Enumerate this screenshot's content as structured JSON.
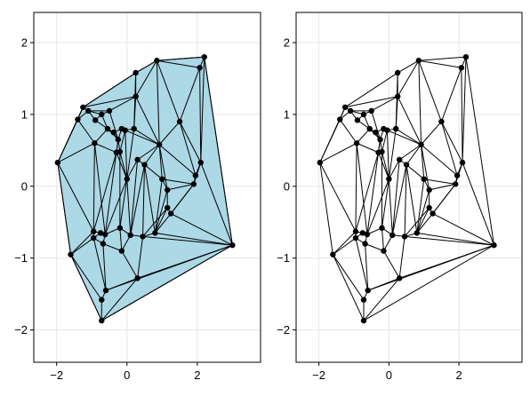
{
  "colors": {
    "fill": "#add8e6",
    "point": "#000000",
    "edge": "#000000"
  },
  "chart_data": [
    {
      "type": "triangulation",
      "filled": true,
      "xlim": [
        -2.65,
        3.8
      ],
      "ylim": [
        -2.45,
        2.42
      ],
      "xticks": [
        -2,
        0,
        2
      ],
      "yticks": [
        -2,
        -1,
        0,
        1,
        2
      ],
      "xtick_labels": [
        "−2",
        "0",
        "2"
      ],
      "ytick_labels": [
        "−2",
        "−1",
        "0",
        "1",
        "2"
      ],
      "grid": true,
      "points": [
        [
          -1.97,
          0.33
        ],
        [
          -1.25,
          1.1
        ],
        [
          -1.4,
          0.93
        ],
        [
          -1.1,
          1.05
        ],
        [
          -0.9,
          0.92
        ],
        [
          -0.72,
          1.0
        ],
        [
          -0.5,
          1.05
        ],
        [
          -0.92,
          0.6
        ],
        [
          -0.55,
          0.8
        ],
        [
          -0.38,
          0.75
        ],
        [
          -0.25,
          0.65
        ],
        [
          -0.15,
          0.8
        ],
        [
          -0.05,
          0.78
        ],
        [
          0.2,
          0.8
        ],
        [
          -0.3,
          0.47
        ],
        [
          -0.2,
          0.48
        ],
        [
          0.0,
          0.1
        ],
        [
          0.3,
          0.37
        ],
        [
          0.5,
          0.3
        ],
        [
          0.25,
          1.25
        ],
        [
          0.25,
          1.58
        ],
        [
          0.85,
          1.75
        ],
        [
          0.92,
          0.58
        ],
        [
          1.5,
          0.9
        ],
        [
          2.07,
          1.65
        ],
        [
          2.2,
          1.8
        ],
        [
          2.1,
          0.33
        ],
        [
          1.95,
          0.15
        ],
        [
          1.9,
          0.03
        ],
        [
          1.0,
          0.1
        ],
        [
          1.15,
          -0.05
        ],
        [
          1.15,
          -0.3
        ],
        [
          1.25,
          -0.38
        ],
        [
          -0.95,
          -0.63
        ],
        [
          -0.95,
          -0.72
        ],
        [
          -0.75,
          -0.65
        ],
        [
          -0.62,
          -0.67
        ],
        [
          -0.68,
          -0.8
        ],
        [
          -0.2,
          -0.58
        ],
        [
          0.1,
          -0.68
        ],
        [
          0.45,
          -0.7
        ],
        [
          0.8,
          -0.65
        ],
        [
          -0.15,
          -0.9
        ],
        [
          0.3,
          -1.28
        ],
        [
          -0.6,
          -1.45
        ],
        [
          -0.72,
          -1.58
        ],
        [
          -0.72,
          -1.87
        ],
        [
          -1.6,
          -0.95
        ],
        [
          3.0,
          -0.82
        ]
      ],
      "edges": [
        [
          0,
          1
        ],
        [
          0,
          2
        ],
        [
          1,
          2
        ],
        [
          1,
          3
        ],
        [
          2,
          3
        ],
        [
          1,
          20
        ],
        [
          1,
          19
        ],
        [
          3,
          4
        ],
        [
          3,
          5
        ],
        [
          3,
          6
        ],
        [
          4,
          5
        ],
        [
          5,
          6
        ],
        [
          4,
          8
        ],
        [
          5,
          8
        ],
        [
          2,
          7
        ],
        [
          0,
          7
        ],
        [
          7,
          8
        ],
        [
          7,
          14
        ],
        [
          8,
          9
        ],
        [
          9,
          10
        ],
        [
          10,
          11
        ],
        [
          11,
          12
        ],
        [
          12,
          13
        ],
        [
          9,
          11
        ],
        [
          6,
          10
        ],
        [
          6,
          19
        ],
        [
          8,
          10
        ],
        [
          10,
          14
        ],
        [
          14,
          15
        ],
        [
          15,
          10
        ],
        [
          15,
          12
        ],
        [
          12,
          16
        ],
        [
          13,
          16
        ],
        [
          13,
          22
        ],
        [
          19,
          13
        ],
        [
          19,
          20
        ],
        [
          20,
          21
        ],
        [
          19,
          21
        ],
        [
          19,
          22
        ],
        [
          21,
          22
        ],
        [
          21,
          23
        ],
        [
          21,
          24
        ],
        [
          21,
          25
        ],
        [
          24,
          25
        ],
        [
          23,
          24
        ],
        [
          23,
          22
        ],
        [
          23,
          26
        ],
        [
          24,
          26
        ],
        [
          25,
          26
        ],
        [
          25,
          48
        ],
        [
          26,
          48
        ],
        [
          26,
          27
        ],
        [
          27,
          28
        ],
        [
          28,
          32
        ],
        [
          26,
          28
        ],
        [
          23,
          27
        ],
        [
          22,
          27
        ],
        [
          22,
          29
        ],
        [
          22,
          18
        ],
        [
          17,
          18
        ],
        [
          17,
          16
        ],
        [
          17,
          22
        ],
        [
          18,
          29
        ],
        [
          29,
          30
        ],
        [
          30,
          31
        ],
        [
          31,
          32
        ],
        [
          32,
          28
        ],
        [
          30,
          28
        ],
        [
          29,
          28
        ],
        [
          32,
          48
        ],
        [
          31,
          41
        ],
        [
          32,
          41
        ],
        [
          41,
          48
        ],
        [
          40,
          41
        ],
        [
          40,
          48
        ],
        [
          43,
          48
        ],
        [
          44,
          48
        ],
        [
          45,
          44
        ],
        [
          46,
          48
        ],
        [
          46,
          45
        ],
        [
          46,
          47
        ],
        [
          46,
          43
        ],
        [
          0,
          47
        ],
        [
          0,
          33
        ],
        [
          47,
          33
        ],
        [
          47,
          34
        ],
        [
          47,
          45
        ],
        [
          33,
          34
        ],
        [
          33,
          35
        ],
        [
          34,
          35
        ],
        [
          35,
          36
        ],
        [
          36,
          37
        ],
        [
          37,
          34
        ],
        [
          33,
          7
        ],
        [
          7,
          36
        ],
        [
          14,
          33
        ],
        [
          14,
          16
        ],
        [
          16,
          38
        ],
        [
          16,
          36
        ],
        [
          15,
          16
        ],
        [
          38,
          39
        ],
        [
          39,
          40
        ],
        [
          38,
          36
        ],
        [
          38,
          42
        ],
        [
          39,
          42
        ],
        [
          42,
          43
        ],
        [
          42,
          37
        ],
        [
          37,
          44
        ],
        [
          44,
          43
        ],
        [
          44,
          34
        ],
        [
          43,
          40
        ],
        [
          18,
          40
        ],
        [
          18,
          39
        ],
        [
          17,
          39
        ],
        [
          29,
          41
        ],
        [
          18,
          41
        ],
        [
          16,
          39
        ],
        [
          10,
          36
        ],
        [
          15,
          38
        ],
        [
          30,
          41
        ],
        [
          31,
          40
        ],
        [
          20,
          13
        ],
        [
          22,
          30
        ],
        [
          12,
          22
        ]
      ]
    },
    {
      "type": "triangulation",
      "filled": false,
      "same_points_as": 0,
      "xlim": [
        -2.65,
        3.8
      ],
      "ylim": [
        -2.45,
        2.42
      ],
      "xticks": [
        -2,
        0,
        2
      ],
      "yticks": [
        -2,
        -1,
        0,
        1,
        2
      ],
      "xtick_labels": [
        "−2",
        "0",
        "2"
      ],
      "ytick_labels": [
        "−2",
        "−1",
        "0",
        "1",
        "2"
      ],
      "grid": true
    }
  ]
}
